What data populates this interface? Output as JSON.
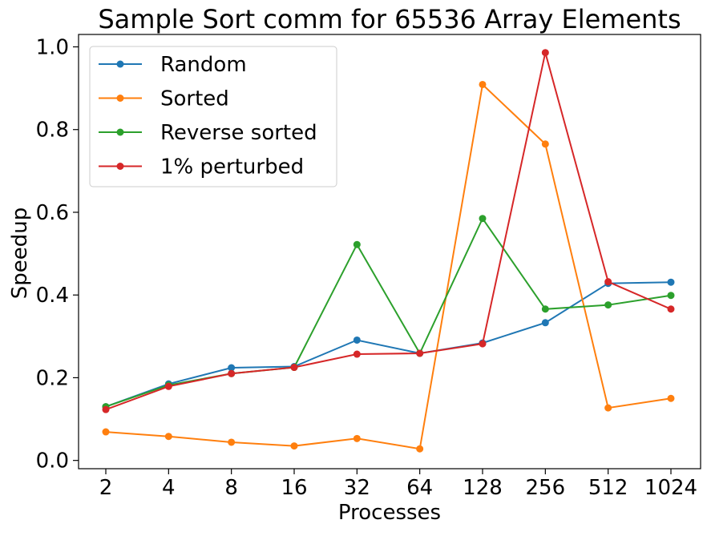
{
  "chart_data": {
    "type": "line",
    "title": "Sample Sort comm for 65536 Array Elements",
    "xlabel": "Processes",
    "ylabel": "Speedup",
    "categories": [
      "2",
      "4",
      "8",
      "16",
      "32",
      "64",
      "128",
      "256",
      "512",
      "1024"
    ],
    "ylim": [
      -0.02,
      1.03
    ],
    "yticks": [
      "0.0",
      "0.2",
      "0.4",
      "0.6",
      "0.8",
      "1.0"
    ],
    "legend_position": "top-left",
    "grid": false,
    "series": [
      {
        "name": "Random",
        "color": "#1f77b4",
        "values": [
          0.13,
          0.185,
          0.224,
          0.227,
          0.291,
          0.259,
          0.284,
          0.333,
          0.428,
          0.431
        ]
      },
      {
        "name": "Sorted",
        "color": "#ff7f0e",
        "values": [
          0.069,
          0.058,
          0.044,
          0.035,
          0.053,
          0.028,
          0.909,
          0.765,
          0.127,
          0.15
        ]
      },
      {
        "name": "Reverse sorted",
        "color": "#2ca02c",
        "values": [
          0.13,
          0.182,
          0.21,
          0.225,
          0.522,
          0.259,
          0.585,
          0.366,
          0.376,
          0.399
        ]
      },
      {
        "name": "1% perturbed",
        "color": "#d62728",
        "values": [
          0.123,
          0.179,
          0.21,
          0.225,
          0.257,
          0.259,
          0.282,
          0.986,
          0.432,
          0.366
        ]
      }
    ]
  }
}
